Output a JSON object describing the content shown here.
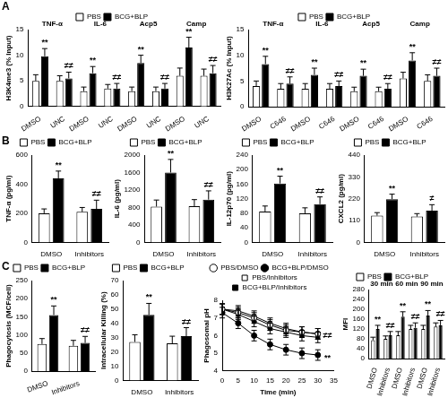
{
  "chart_data": [
    {
      "type": "bar",
      "panel": "A",
      "ylabel": "H3K4me3 (% Input)",
      "categories": [
        "DMSO",
        "UNC",
        "DMSO",
        "UNC",
        "DMSO",
        "UNC",
        "DMSO",
        "UNC"
      ],
      "groups": [
        "TNF-α",
        "IL-6",
        "Acp5",
        "Camp"
      ],
      "series": [
        {
          "name": "PBS",
          "color": "#ffffff",
          "values": [
            5,
            5,
            3,
            3.5,
            3,
            3,
            6,
            6
          ],
          "error": [
            1.2,
            1,
            0.8,
            0.8,
            0.8,
            0.8,
            1.5,
            1.3
          ]
        },
        {
          "name": "BCG+BLP",
          "color": "#000000",
          "values": [
            9.8,
            5.5,
            6.5,
            3.5,
            8.5,
            3.5,
            11.5,
            6.5
          ],
          "error": [
            1.5,
            1.2,
            1.3,
            1,
            1.5,
            1,
            2,
            1.5
          ]
        }
      ],
      "ylim": [
        0,
        15
      ],
      "yticks": [
        0,
        5,
        10,
        15
      ],
      "grid": false,
      "legend": "top",
      "annotations": [
        {
          "text": "**",
          "category": 0,
          "series": 1
        },
        {
          "text": "≠≠",
          "category": 1,
          "series": 1
        },
        {
          "text": "**",
          "category": 2,
          "series": 1
        },
        {
          "text": "≠≠",
          "category": 3,
          "series": 1
        },
        {
          "text": "**",
          "category": 4,
          "series": 1
        },
        {
          "text": "≠≠",
          "category": 5,
          "series": 1
        },
        {
          "text": "**",
          "category": 6,
          "series": 1
        },
        {
          "text": "≠≠",
          "category": 7,
          "series": 1
        }
      ]
    },
    {
      "type": "bar",
      "ylabel": "H3K27Ac (% Input)",
      "categories": [
        "DMSO",
        "C646",
        "DMSO",
        "C646",
        "DMSO",
        "C646",
        "DMSO",
        "C646"
      ],
      "groups": [
        "TNF-α",
        "IL-6",
        "Acp5",
        "Camp"
      ],
      "series": [
        {
          "name": "PBS",
          "color": "#ffffff",
          "values": [
            4,
            3.5,
            3.5,
            3.5,
            3,
            3,
            5.5,
            5
          ],
          "error": [
            1,
            1,
            1,
            1,
            0.8,
            0.8,
            1.2,
            1.2
          ]
        },
        {
          "name": "BCG+BLP",
          "color": "#000000",
          "values": [
            8.3,
            4.5,
            6.2,
            4,
            6,
            3.5,
            9,
            6
          ],
          "error": [
            1.5,
            1.3,
            1.3,
            1,
            1.3,
            1,
            1.5,
            1.5
          ]
        }
      ],
      "ylim": [
        0,
        15
      ],
      "yticks": [
        0,
        5,
        10,
        15
      ],
      "grid": false,
      "legend": "top",
      "annotations": [
        {
          "text": "**",
          "category": 0,
          "series": 1
        },
        {
          "text": "≠≠",
          "category": 1,
          "series": 1
        },
        {
          "text": "**",
          "category": 2,
          "series": 1
        },
        {
          "text": "≠≠",
          "category": 3,
          "series": 1
        },
        {
          "text": "**",
          "category": 4,
          "series": 1
        },
        {
          "text": "≠≠",
          "category": 5,
          "series": 1
        },
        {
          "text": "**",
          "category": 6,
          "series": 1
        },
        {
          "text": "≠≠",
          "category": 7,
          "series": 1
        }
      ]
    },
    {
      "type": "bar",
      "panel": "B",
      "ylabel": "TNF-α (pg/ml)",
      "categories": [
        "DMSO",
        "Inhibitors"
      ],
      "series": [
        {
          "name": "PBS",
          "color": "#ffffff",
          "values": [
            200,
            210
          ],
          "error": [
            30,
            30
          ]
        },
        {
          "name": "BCG+BLP",
          "color": "#000000",
          "values": [
            440,
            230
          ],
          "error": [
            50,
            60
          ]
        }
      ],
      "ylim": [
        0,
        600
      ],
      "yticks": [
        0,
        200,
        400,
        600
      ],
      "grid": false,
      "legend": "top",
      "annotations": [
        {
          "text": "**",
          "category": 0,
          "series": 1
        },
        {
          "text": "≠≠",
          "category": 1,
          "series": 1
        }
      ]
    },
    {
      "type": "bar",
      "ylabel": "IL-6 (pg/ml)",
      "categories": [
        "DMSO",
        "Inhibitors"
      ],
      "series": [
        {
          "name": "PBS",
          "color": "#ffffff",
          "values": [
            820,
            830
          ],
          "error": [
            150,
            150
          ]
        },
        {
          "name": "BCG+BLP",
          "color": "#000000",
          "values": [
            1600,
            980
          ],
          "error": [
            300,
            200
          ]
        }
      ],
      "ylim": [
        0,
        2000
      ],
      "yticks": [
        0,
        400,
        800,
        1200,
        1600,
        2000
      ],
      "grid": false,
      "legend": "top",
      "annotations": [
        {
          "text": "**",
          "category": 0,
          "series": 1
        },
        {
          "text": "≠≠",
          "category": 1,
          "series": 1
        }
      ]
    },
    {
      "type": "bar",
      "ylabel": "IL-12p70 (pg/ml)",
      "categories": [
        "DMSO",
        "Inhibitors"
      ],
      "series": [
        {
          "name": "PBS",
          "color": "#ffffff",
          "values": [
            85,
            80
          ],
          "error": [
            15,
            15
          ]
        },
        {
          "name": "BCG+BLP",
          "color": "#000000",
          "values": [
            162,
            105
          ],
          "error": [
            20,
            20
          ]
        }
      ],
      "ylim": [
        0,
        240
      ],
      "yticks": [
        0,
        40,
        80,
        120,
        160,
        200,
        240
      ],
      "grid": false,
      "legend": "top",
      "annotations": [
        {
          "text": "**",
          "category": 0,
          "series": 1
        },
        {
          "text": "≠≠",
          "category": 1,
          "series": 1
        }
      ]
    },
    {
      "type": "bar",
      "ylabel": "CXCL2 (pg/ml)",
      "categories": [
        "DMSO",
        "Inhibitors"
      ],
      "series": [
        {
          "name": "PBS",
          "color": "#ffffff",
          "values": [
            135,
            130
          ],
          "error": [
            15,
            15
          ]
        },
        {
          "name": "BCG+BLP",
          "color": "#000000",
          "values": [
            218,
            160
          ],
          "error": [
            25,
            30
          ]
        }
      ],
      "ylim": [
        0,
        440
      ],
      "yticks": [
        0,
        110,
        220,
        330,
        440
      ],
      "grid": false,
      "legend": "top",
      "annotations": [
        {
          "text": "**",
          "category": 0,
          "series": 1
        },
        {
          "text": "≠",
          "category": 1,
          "series": 1
        }
      ]
    },
    {
      "type": "bar",
      "panel": "C",
      "ylabel": "Phagocytosis (MCF/cell)",
      "categories": [
        "DMSO",
        "Inhibitors"
      ],
      "series": [
        {
          "name": "PBS",
          "color": "#ffffff",
          "values": [
            75,
            70
          ],
          "error": [
            15,
            15
          ]
        },
        {
          "name": "BCG+BLP",
          "color": "#000000",
          "values": [
            155,
            78
          ],
          "error": [
            25,
            18
          ]
        }
      ],
      "ylim": [
        0,
        250
      ],
      "yticks": [
        0,
        50,
        100,
        150,
        200,
        250
      ],
      "grid": false,
      "legend": "top",
      "annotations": [
        {
          "text": "**",
          "category": 0,
          "series": 1
        },
        {
          "text": "≠≠",
          "category": 1,
          "series": 1
        }
      ]
    },
    {
      "type": "bar",
      "ylabel": "Intracellular Killing (%)",
      "categories": [
        "DMSO",
        "Inhibitors"
      ],
      "series": [
        {
          "name": "PBS",
          "color": "#ffffff",
          "values": [
            27,
            26
          ],
          "error": [
            5,
            5
          ]
        },
        {
          "name": "BCG+BLP",
          "color": "#000000",
          "values": [
            46,
            31
          ],
          "error": [
            8,
            6
          ]
        }
      ],
      "ylim": [
        0,
        70
      ],
      "yticks": [
        0,
        10,
        20,
        30,
        40,
        50,
        60,
        70
      ],
      "grid": false,
      "legend": "top",
      "annotations": [
        {
          "text": "**",
          "category": 0,
          "series": 1
        },
        {
          "text": "≠≠",
          "category": 1,
          "series": 1
        }
      ]
    },
    {
      "type": "line",
      "ylabel": "Phagosomal pH",
      "xlabel": "Time (min)",
      "x": [
        0,
        5,
        10,
        15,
        20,
        25,
        30
      ],
      "series": [
        {
          "name": "PBS/DMSO",
          "color": "#ffffff",
          "marker": "circle",
          "values": [
            7.5,
            7.3,
            7.0,
            6.6,
            6.3,
            6.2,
            6.1
          ],
          "error": [
            0.3,
            0.3,
            0.3,
            0.3,
            0.3,
            0.3,
            0.3
          ]
        },
        {
          "name": "BCG+BLP/DMSO",
          "color": "#000000",
          "marker": "circle",
          "values": [
            7.3,
            6.7,
            6.0,
            5.5,
            5.2,
            5.0,
            4.9
          ],
          "error": [
            0.3,
            0.3,
            0.3,
            0.3,
            0.3,
            0.3,
            0.3
          ]
        },
        {
          "name": "PBS/Inhibitors",
          "color": "#ffffff",
          "marker": "square",
          "values": [
            7.5,
            7.4,
            7.1,
            6.7,
            6.4,
            6.2,
            6.1
          ],
          "error": [
            0.3,
            0.3,
            0.3,
            0.3,
            0.3,
            0.3,
            0.3
          ]
        },
        {
          "name": "BCG+BLP/Inhibitors",
          "color": "#000000",
          "marker": "square",
          "values": [
            7.5,
            7.2,
            6.8,
            6.4,
            6.2,
            6.0,
            5.9
          ],
          "error": [
            0.3,
            0.3,
            0.3,
            0.3,
            0.3,
            0.3,
            0.3
          ]
        }
      ],
      "xlim": [
        0,
        35
      ],
      "xticks": [
        0,
        5,
        10,
        15,
        20,
        25,
        30,
        35
      ],
      "ylim": [
        4,
        8
      ],
      "yticks": [
        4,
        5,
        6,
        7,
        8
      ],
      "grid": false,
      "legend": "top",
      "annotations": [
        {
          "text": "≠≠",
          "x": 33,
          "y": 6.0
        },
        {
          "text": "**",
          "x": 33,
          "y": 4.7
        }
      ]
    },
    {
      "type": "bar",
      "ylabel": "MFI",
      "categories": [
        "DMSO",
        "Inhibitors",
        "DMSO",
        "Inhibitors",
        "DMSO",
        "Inhibitors"
      ],
      "groups": [
        "30 min",
        "60 min",
        "90 min"
      ],
      "series": [
        {
          "name": "PBS",
          "color": "#ffffff",
          "values": [
            75,
            80,
            95,
            120,
            120,
            130
          ],
          "error": [
            12,
            12,
            15,
            15,
            15,
            15
          ]
        },
        {
          "name": "BCG+BLP",
          "color": "#000000",
          "values": [
            120,
            95,
            170,
            125,
            175,
            135
          ],
          "error": [
            15,
            15,
            20,
            20,
            20,
            20
          ]
        }
      ],
      "ylim": [
        0,
        280
      ],
      "yticks": [
        0,
        40,
        80,
        120,
        160,
        200,
        240,
        280
      ],
      "grid": false,
      "legend": "top",
      "annotations": [
        {
          "text": "**",
          "category": 0,
          "series": 1
        },
        {
          "text": "≠≠",
          "category": 1,
          "series": 1
        },
        {
          "text": "**",
          "category": 2,
          "series": 1
        },
        {
          "text": "≠≠",
          "category": 3,
          "series": 1
        },
        {
          "text": "**",
          "category": 4,
          "series": 1
        },
        {
          "text": "≠≠",
          "category": 5,
          "series": 1
        }
      ]
    }
  ]
}
